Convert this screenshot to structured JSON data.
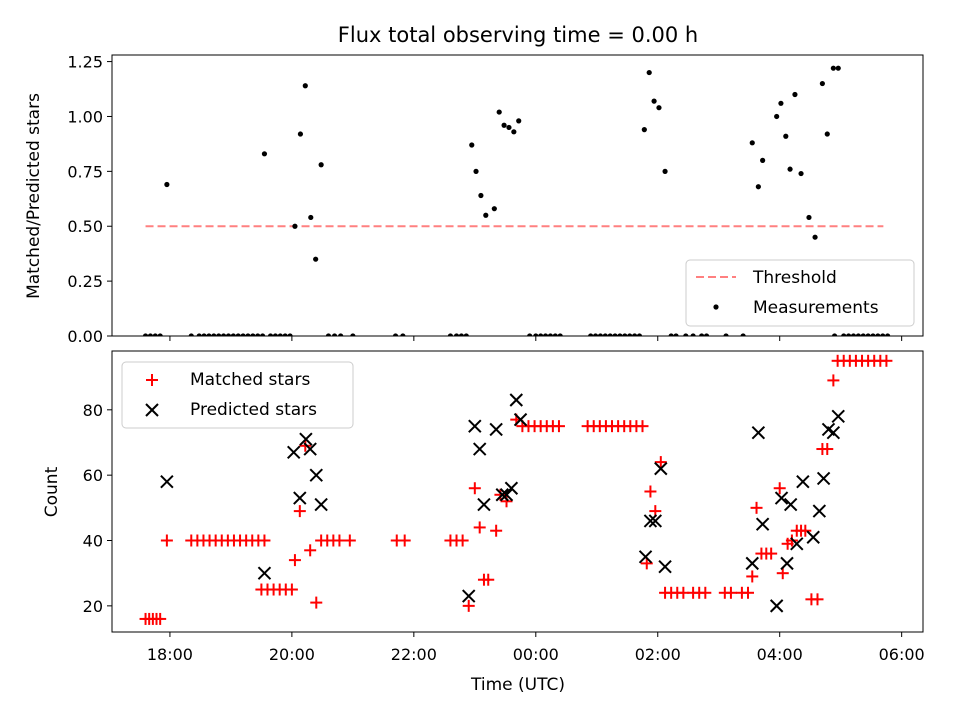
{
  "colors": {
    "threshold": "#ff8080",
    "measurement": "#000000",
    "matched": "#ff0000",
    "predicted": "#000000"
  },
  "chart_data": [
    {
      "type": "scatter",
      "title": "Flux total observing time = 0.00 h",
      "xlabel": "",
      "ylabel": "Matched/Predicted stars",
      "xlim": [
        17.05,
        30.35
      ],
      "ylim": [
        0,
        1.28
      ],
      "yticks": [
        0,
        0.25,
        0.5,
        0.75,
        1.0,
        1.25
      ],
      "ytick_labels": [
        "0.00",
        "0.25",
        "0.50",
        "0.75",
        "1.00",
        "1.25"
      ],
      "xticks": [
        18,
        20,
        22,
        24,
        26,
        28,
        30
      ],
      "legend": {
        "position": "bottom-right",
        "entries": [
          "Threshold",
          "Measurements"
        ]
      },
      "threshold": {
        "name": "Threshold",
        "y": 0.5,
        "x": [
          17.6,
          29.7
        ]
      },
      "series": [
        {
          "name": "Measurements",
          "points": [
            [
              17.6,
              0
            ],
            [
              17.68,
              0
            ],
            [
              17.76,
              0
            ],
            [
              17.84,
              0
            ],
            [
              17.95,
              0.69
            ],
            [
              18.35,
              0
            ],
            [
              18.48,
              0
            ],
            [
              18.56,
              0
            ],
            [
              18.64,
              0
            ],
            [
              18.72,
              0
            ],
            [
              18.8,
              0
            ],
            [
              18.88,
              0
            ],
            [
              18.96,
              0
            ],
            [
              19.04,
              0
            ],
            [
              19.12,
              0
            ],
            [
              19.2,
              0
            ],
            [
              19.28,
              0
            ],
            [
              19.36,
              0
            ],
            [
              19.44,
              0
            ],
            [
              19.52,
              0
            ],
            [
              19.55,
              0.83
            ],
            [
              19.65,
              0
            ],
            [
              19.73,
              0
            ],
            [
              19.81,
              0
            ],
            [
              19.89,
              0
            ],
            [
              19.97,
              0
            ],
            [
              20.05,
              0.5
            ],
            [
              20.14,
              0.92
            ],
            [
              20.22,
              1.14
            ],
            [
              20.31,
              0.54
            ],
            [
              20.39,
              0.35
            ],
            [
              20.48,
              0.78
            ],
            [
              20.6,
              0
            ],
            [
              20.7,
              0
            ],
            [
              20.8,
              0
            ],
            [
              21.0,
              0
            ],
            [
              21.7,
              0
            ],
            [
              21.82,
              0
            ],
            [
              22.6,
              0
            ],
            [
              22.7,
              0
            ],
            [
              22.78,
              0
            ],
            [
              22.86,
              0
            ],
            [
              22.95,
              0.87
            ],
            [
              23.02,
              0.75
            ],
            [
              23.1,
              0.64
            ],
            [
              23.18,
              0.55
            ],
            [
              23.32,
              0.58
            ],
            [
              23.4,
              1.02
            ],
            [
              23.48,
              0.96
            ],
            [
              23.56,
              0.95
            ],
            [
              23.64,
              0.93
            ],
            [
              23.72,
              0.98
            ],
            [
              23.9,
              0
            ],
            [
              24.0,
              0
            ],
            [
              24.08,
              0
            ],
            [
              24.16,
              0
            ],
            [
              24.24,
              0
            ],
            [
              24.32,
              0
            ],
            [
              24.4,
              0
            ],
            [
              24.9,
              0
            ],
            [
              24.98,
              0
            ],
            [
              25.06,
              0
            ],
            [
              25.14,
              0
            ],
            [
              25.22,
              0
            ],
            [
              25.3,
              0
            ],
            [
              25.38,
              0
            ],
            [
              25.46,
              0
            ],
            [
              25.54,
              0
            ],
            [
              25.62,
              0
            ],
            [
              25.7,
              0
            ],
            [
              25.78,
              0.94
            ],
            [
              25.86,
              1.2
            ],
            [
              25.94,
              1.07
            ],
            [
              26.02,
              1.04
            ],
            [
              26.12,
              0.75
            ],
            [
              26.22,
              0
            ],
            [
              26.3,
              0
            ],
            [
              26.46,
              0
            ],
            [
              26.58,
              0
            ],
            [
              26.72,
              0
            ],
            [
              26.8,
              0
            ],
            [
              27.12,
              0
            ],
            [
              27.4,
              0
            ],
            [
              27.55,
              0.88
            ],
            [
              27.65,
              0.68
            ],
            [
              27.72,
              0.8
            ],
            [
              27.95,
              1.0
            ],
            [
              28.02,
              1.06
            ],
            [
              28.1,
              0.91
            ],
            [
              28.17,
              0.76
            ],
            [
              28.25,
              1.1
            ],
            [
              28.35,
              0.74
            ],
            [
              28.48,
              0.54
            ],
            [
              28.58,
              0.45
            ],
            [
              28.7,
              1.15
            ],
            [
              28.78,
              0.92
            ],
            [
              28.88,
              1.22
            ],
            [
              28.96,
              1.22
            ],
            [
              28.9,
              0
            ],
            [
              29.05,
              0
            ],
            [
              29.13,
              0
            ],
            [
              29.21,
              0
            ],
            [
              29.29,
              0
            ],
            [
              29.37,
              0
            ],
            [
              29.45,
              0
            ],
            [
              29.53,
              0
            ],
            [
              29.61,
              0
            ],
            [
              29.69,
              0
            ],
            [
              29.77,
              0
            ]
          ]
        }
      ]
    },
    {
      "type": "scatter",
      "title": "",
      "xlabel": "Time (UTC)",
      "ylabel": "Count",
      "xlim": [
        17.05,
        30.35
      ],
      "ylim": [
        12,
        98
      ],
      "yticks": [
        20,
        40,
        60,
        80
      ],
      "ytick_labels": [
        "20",
        "40",
        "60",
        "80"
      ],
      "xticks": [
        18,
        20,
        22,
        24,
        26,
        28,
        30
      ],
      "xtick_labels": [
        "18:00",
        "20:00",
        "22:00",
        "00:00",
        "02:00",
        "04:00",
        "06:00"
      ],
      "legend": {
        "position": "top-left",
        "entries": [
          "Matched stars",
          "Predicted stars"
        ]
      },
      "series": [
        {
          "name": "Matched stars",
          "marker": "plus",
          "points": [
            [
              17.6,
              16
            ],
            [
              17.66,
              16
            ],
            [
              17.72,
              16
            ],
            [
              17.78,
              16
            ],
            [
              17.84,
              16
            ],
            [
              17.95,
              40
            ],
            [
              18.35,
              40
            ],
            [
              18.45,
              40
            ],
            [
              18.55,
              40
            ],
            [
              18.65,
              40
            ],
            [
              18.75,
              40
            ],
            [
              18.85,
              40
            ],
            [
              18.95,
              40
            ],
            [
              19.05,
              40
            ],
            [
              19.15,
              40
            ],
            [
              19.25,
              40
            ],
            [
              19.35,
              40
            ],
            [
              19.45,
              40
            ],
            [
              19.55,
              40
            ],
            [
              19.5,
              25
            ],
            [
              19.6,
              25
            ],
            [
              19.7,
              25
            ],
            [
              19.8,
              25
            ],
            [
              19.9,
              25
            ],
            [
              20.0,
              25
            ],
            [
              20.05,
              34
            ],
            [
              20.13,
              49
            ],
            [
              20.22,
              69
            ],
            [
              20.3,
              37
            ],
            [
              20.4,
              21
            ],
            [
              20.48,
              40
            ],
            [
              20.58,
              40
            ],
            [
              20.68,
              40
            ],
            [
              20.78,
              40
            ],
            [
              20.95,
              40
            ],
            [
              21.72,
              40
            ],
            [
              21.85,
              40
            ],
            [
              22.6,
              40
            ],
            [
              22.7,
              40
            ],
            [
              22.8,
              40
            ],
            [
              22.9,
              20
            ],
            [
              23.0,
              56
            ],
            [
              23.08,
              44
            ],
            [
              23.15,
              28
            ],
            [
              23.22,
              28
            ],
            [
              23.35,
              43
            ],
            [
              23.42,
              54
            ],
            [
              23.52,
              52
            ],
            [
              23.68,
              77
            ],
            [
              23.78,
              75
            ],
            [
              23.88,
              75
            ],
            [
              23.98,
              75
            ],
            [
              24.08,
              75
            ],
            [
              24.18,
              75
            ],
            [
              24.28,
              75
            ],
            [
              24.38,
              75
            ],
            [
              24.85,
              75
            ],
            [
              24.95,
              75
            ],
            [
              25.05,
              75
            ],
            [
              25.15,
              75
            ],
            [
              25.25,
              75
            ],
            [
              25.35,
              75
            ],
            [
              25.45,
              75
            ],
            [
              25.55,
              75
            ],
            [
              25.65,
              75
            ],
            [
              25.75,
              75
            ],
            [
              25.82,
              33
            ],
            [
              25.88,
              55
            ],
            [
              25.96,
              49
            ],
            [
              26.05,
              64
            ],
            [
              26.12,
              24
            ],
            [
              26.22,
              24
            ],
            [
              26.32,
              24
            ],
            [
              26.42,
              24
            ],
            [
              26.58,
              24
            ],
            [
              26.68,
              24
            ],
            [
              26.78,
              24
            ],
            [
              27.1,
              24
            ],
            [
              27.2,
              24
            ],
            [
              27.38,
              24
            ],
            [
              27.48,
              24
            ],
            [
              27.55,
              29
            ],
            [
              27.62,
              50
            ],
            [
              27.7,
              36
            ],
            [
              27.78,
              36
            ],
            [
              27.86,
              36
            ],
            [
              28.0,
              56
            ],
            [
              28.05,
              30
            ],
            [
              28.13,
              39
            ],
            [
              28.2,
              40
            ],
            [
              28.28,
              43
            ],
            [
              28.35,
              43
            ],
            [
              28.42,
              43
            ],
            [
              28.52,
              22
            ],
            [
              28.62,
              22
            ],
            [
              28.7,
              68
            ],
            [
              28.78,
              68
            ],
            [
              28.88,
              89
            ],
            [
              28.95,
              95
            ],
            [
              29.05,
              95
            ],
            [
              29.15,
              95
            ],
            [
              29.25,
              95
            ],
            [
              29.35,
              95
            ],
            [
              29.45,
              95
            ],
            [
              29.55,
              95
            ],
            [
              29.65,
              95
            ],
            [
              29.75,
              95
            ]
          ]
        },
        {
          "name": "Predicted stars",
          "marker": "x",
          "points": [
            [
              17.95,
              58
            ],
            [
              19.55,
              30
            ],
            [
              20.03,
              67
            ],
            [
              20.13,
              53
            ],
            [
              20.23,
              71
            ],
            [
              20.3,
              68
            ],
            [
              20.4,
              60
            ],
            [
              20.48,
              51
            ],
            [
              22.9,
              23
            ],
            [
              23.0,
              75
            ],
            [
              23.08,
              68
            ],
            [
              23.15,
              51
            ],
            [
              23.35,
              74
            ],
            [
              23.45,
              54
            ],
            [
              23.52,
              54
            ],
            [
              23.6,
              56
            ],
            [
              23.68,
              83
            ],
            [
              23.75,
              77
            ],
            [
              25.8,
              35
            ],
            [
              25.88,
              46
            ],
            [
              25.96,
              46
            ],
            [
              26.05,
              62
            ],
            [
              26.12,
              32
            ],
            [
              27.55,
              33
            ],
            [
              27.65,
              73
            ],
            [
              27.72,
              45
            ],
            [
              27.95,
              20
            ],
            [
              28.03,
              53
            ],
            [
              28.12,
              33
            ],
            [
              28.18,
              51
            ],
            [
              28.28,
              39
            ],
            [
              28.38,
              58
            ],
            [
              28.55,
              41
            ],
            [
              28.65,
              49
            ],
            [
              28.72,
              59
            ],
            [
              28.8,
              74
            ],
            [
              28.88,
              73
            ],
            [
              28.96,
              78
            ]
          ]
        }
      ]
    }
  ]
}
